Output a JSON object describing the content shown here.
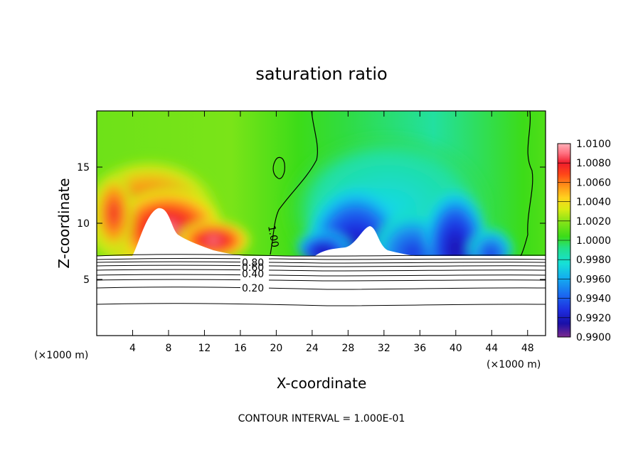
{
  "chart_data": {
    "type": "heatmap",
    "title": "saturation ratio",
    "xlabel": "X-coordinate",
    "ylabel": "Z-coordinate",
    "x_unit": "(×1000 m)",
    "z_unit": "(×1000 m)",
    "xlim": [
      0,
      50
    ],
    "ylim": [
      0,
      20
    ],
    "x_ticks": [
      4,
      8,
      12,
      16,
      20,
      24,
      28,
      32,
      36,
      40,
      44,
      48
    ],
    "y_ticks": [
      5,
      10,
      15
    ],
    "colorbar": {
      "min": 0.99,
      "max": 1.01,
      "ticks": [
        "1.0100",
        "1.0080",
        "1.0060",
        "1.0040",
        "1.0020",
        "1.0000",
        "0.9980",
        "0.9960",
        "0.9940",
        "0.9920",
        "0.9900"
      ],
      "colors": [
        "#7b2a8e",
        "#1a0fa8",
        "#1e2ee0",
        "#1b6bf0",
        "#14aaf0",
        "#16e0d8",
        "#22e08a",
        "#3cdc18",
        "#8ae418",
        "#d8ec14",
        "#ffd21e",
        "#ff9418",
        "#ff4818",
        "#f01c2c",
        "#ff7080",
        "#ffb0b8"
      ]
    },
    "contour_interval": "CONTOUR INTERVAL = 1.000E-01",
    "contour_labels": [
      "0.80",
      "0.60",
      "0.40",
      "0.20",
      "1.00"
    ]
  }
}
